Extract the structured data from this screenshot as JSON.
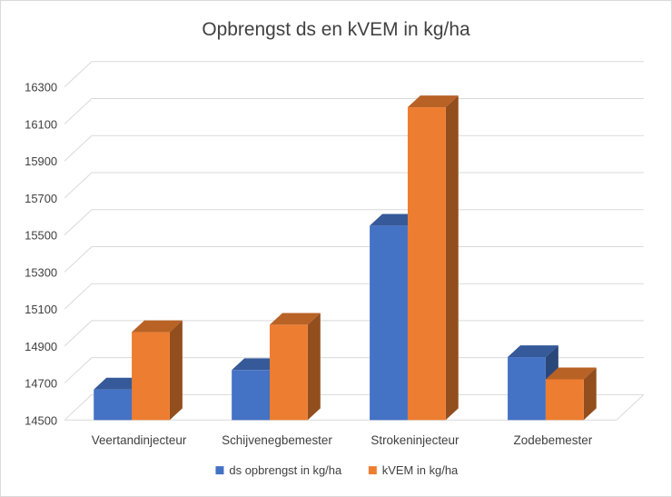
{
  "chart_data": {
    "type": "bar",
    "title": "Opbrengst ds en kVEM in kg/ha",
    "categories": [
      "Veertandinjecteur",
      "Schijvenegbemester",
      "Strokeninjecteur",
      "Zodebemester"
    ],
    "series": [
      {
        "name": "ds opbrengst in kg/ha",
        "values": [
          14665,
          14770,
          15550,
          14840
        ],
        "color": "#4472C4"
      },
      {
        "name": "kVEM in kg/ha",
        "values": [
          14975,
          15015,
          16190,
          14720
        ],
        "color": "#ED7D31"
      }
    ],
    "yticks": [
      14500,
      14700,
      14900,
      15100,
      15300,
      15500,
      15700,
      15900,
      16100,
      16300
    ],
    "ylim": [
      14500,
      16300
    ],
    "xlabel": "",
    "ylabel": "",
    "grid": true,
    "legend": "bottom"
  }
}
